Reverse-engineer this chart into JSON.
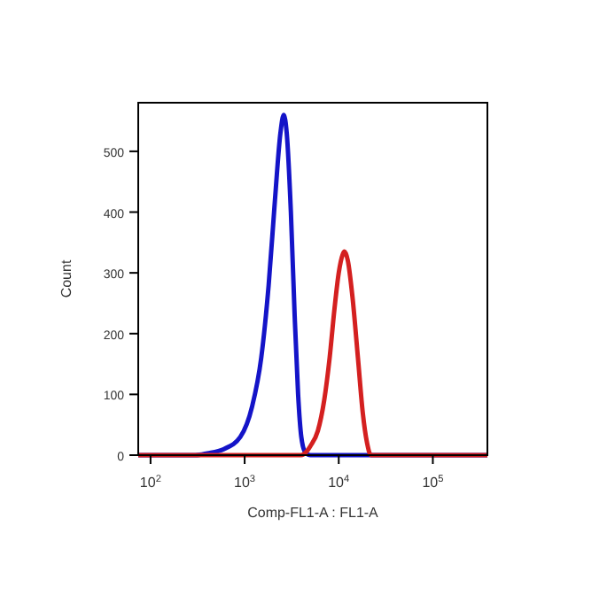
{
  "chart_data": {
    "type": "line",
    "xlabel": "Comp-FL1-A : FL1-A",
    "ylabel": "Count",
    "log": "x",
    "xlim": [
      74,
      380000
    ],
    "ylim": [
      0,
      580
    ],
    "xticks": [
      {
        "value": 100,
        "label": "10$^{2}$"
      },
      {
        "value": 1000,
        "label": "10$^{3}$"
      },
      {
        "value": 10000,
        "label": "10$^{4}$"
      },
      {
        "value": 100000,
        "label": "10$^{5}$"
      }
    ],
    "yticks": [
      0,
      100,
      200,
      300,
      400,
      500
    ],
    "grid": false,
    "marker": "none",
    "line_style": "solid",
    "series": [
      {
        "color": "#1414c8",
        "x": [
          74,
          300,
          400,
          600,
          900,
          1200,
          1500,
          1800,
          2100,
          2400,
          2600,
          2800,
          3100,
          3400,
          3700,
          4000,
          4400,
          5000,
          380000
        ],
        "values": [
          0,
          0,
          3,
          10,
          30,
          80,
          160,
          280,
          420,
          530,
          560,
          530,
          400,
          230,
          100,
          30,
          5,
          0,
          0
        ]
      },
      {
        "color": "#d42020",
        "x": [
          74,
          4000,
          4500,
          5000,
          6000,
          7000,
          8000,
          9000,
          10000,
          11000,
          11500,
          12500,
          14000,
          16000,
          18000,
          20000,
          22000,
          380000
        ],
        "values": [
          0,
          0,
          5,
          15,
          40,
          90,
          160,
          240,
          300,
          330,
          335,
          320,
          260,
          160,
          70,
          20,
          0,
          0
        ]
      }
    ]
  }
}
